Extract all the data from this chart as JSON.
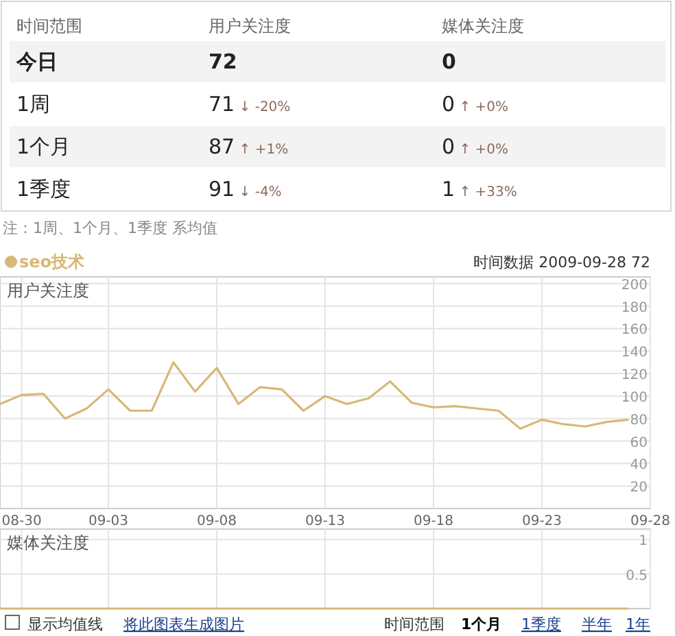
{
  "chart_data": [
    {
      "type": "other",
      "categories": [
        "时间范围",
        "用户关注度",
        "媒体关注度"
      ],
      "y_categories": [
        "今日",
        "1周",
        "1个月",
        "1季度"
      ],
      "cell_labels": [
        [
          "72",
          "0"
        ],
        [
          "71 ↓ -20%",
          "0 ↑ +0%"
        ],
        [
          "87 ↑ +1%",
          "0 ↑ +0%"
        ],
        [
          "91 ↓ -4%",
          "1 ↑ +33%"
        ]
      ],
      "annotations": [
        "注：1周、1个月、1季度 系均值"
      ]
    },
    {
      "type": "line",
      "ylabel": "用户关注度",
      "legend": "top left",
      "grid": true,
      "annotations": [
        "时间数据 2009-09-28 72"
      ],
      "x": [
        "2009-08-29",
        "2009-08-30",
        "2009-08-31",
        "2009-09-01",
        "2009-09-02",
        "2009-09-03",
        "2009-09-04",
        "2009-09-05",
        "2009-09-06",
        "2009-09-07",
        "2009-09-08",
        "2009-09-09",
        "2009-09-10",
        "2009-09-11",
        "2009-09-12",
        "2009-09-13",
        "2009-09-14",
        "2009-09-15",
        "2009-09-16",
        "2009-09-17",
        "2009-09-18",
        "2009-09-19",
        "2009-09-20",
        "2009-09-21",
        "2009-09-22",
        "2009-09-23",
        "2009-09-24",
        "2009-09-25",
        "2009-09-26",
        "2009-09-27"
      ],
      "series": [
        {
          "name": "seo技术",
          "color": "#d8b877",
          "values": [
            93,
            101,
            102,
            80,
            89,
            106,
            87,
            87,
            130,
            104,
            125,
            93,
            108,
            106,
            87,
            100,
            93,
            98,
            113,
            94,
            90,
            91,
            89,
            87,
            71,
            79,
            75,
            73,
            77,
            79
          ]
        }
      ],
      "xlim": [
        "2009-08-29",
        "2009-09-28"
      ],
      "xticks": [
        {
          "value": "2009-08-30",
          "label": "08-30"
        },
        {
          "value": "2009-09-03",
          "label": "09-03"
        },
        {
          "value": "2009-09-08",
          "label": "09-08"
        },
        {
          "value": "2009-09-13",
          "label": "09-13"
        },
        {
          "value": "2009-09-18",
          "label": "09-18"
        },
        {
          "value": "2009-09-23",
          "label": "09-23"
        },
        {
          "value": "2009-09-28",
          "label": "09-28"
        }
      ],
      "ylim": [
        0,
        206
      ],
      "yticks": [
        20,
        40,
        60,
        80,
        100,
        120,
        140,
        160,
        180,
        200
      ]
    },
    {
      "type": "line",
      "ylabel": "媒体关注度",
      "grid": true,
      "tick_labels": "y",
      "annotations": [
        "显示均值线",
        "将此图表生成图片",
        "时间范围",
        "1个月",
        "1季度",
        "半年",
        "1年"
      ],
      "x": [
        "2009-08-29",
        "2009-08-30",
        "2009-08-31",
        "2009-09-01",
        "2009-09-02",
        "2009-09-03",
        "2009-09-04",
        "2009-09-05",
        "2009-09-06",
        "2009-09-07",
        "2009-09-08",
        "2009-09-09",
        "2009-09-10",
        "2009-09-11",
        "2009-09-12",
        "2009-09-13",
        "2009-09-14",
        "2009-09-15",
        "2009-09-16",
        "2009-09-17",
        "2009-09-18",
        "2009-09-19",
        "2009-09-20",
        "2009-09-21",
        "2009-09-22",
        "2009-09-23",
        "2009-09-24",
        "2009-09-25",
        "2009-09-26",
        "2009-09-27"
      ],
      "series": [
        {
          "color": "#d8b877",
          "values": [
            0,
            0,
            0,
            0,
            0,
            0,
            0,
            0,
            0,
            0,
            0,
            0,
            0,
            0,
            0,
            0,
            0,
            0,
            0,
            0,
            0,
            0,
            0,
            0,
            0,
            0,
            0,
            0,
            0,
            0
          ]
        }
      ],
      "xlim": [
        "2009-08-29",
        "2009-09-28"
      ],
      "xticks": [
        "2009-08-30",
        "2009-09-03",
        "2009-09-08",
        "2009-09-13",
        "2009-09-18",
        "2009-09-23",
        "2009-09-28"
      ],
      "ylim": [
        0,
        1.15
      ],
      "yticks": [
        0.5,
        1
      ]
    }
  ]
}
